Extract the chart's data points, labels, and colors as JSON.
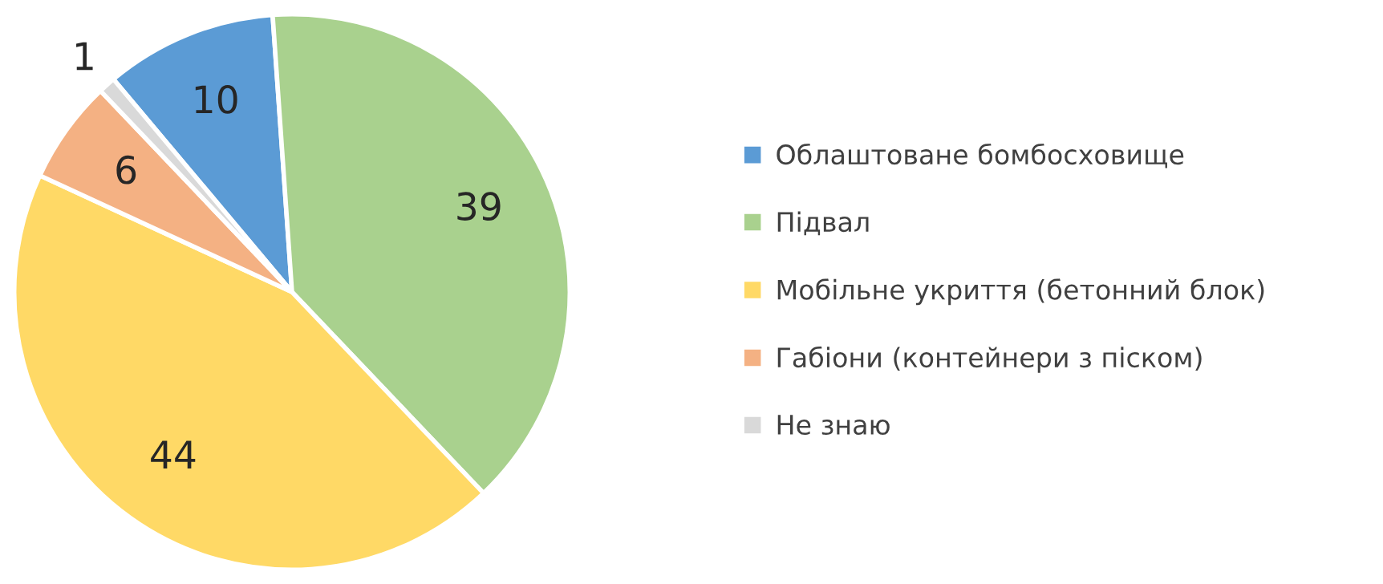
{
  "chart_data": {
    "type": "pie",
    "categories": [
      "Облаштоване бомбосховище",
      "Підвал",
      "Мобільне укриття (бетонний блок)",
      "Габіони (контейнери з піском)",
      "Не знаю"
    ],
    "values": [
      10,
      39,
      44,
      6,
      1
    ],
    "colors": [
      "#5b9bd5",
      "#a9d18e",
      "#ffd966",
      "#f4b183",
      "#d9d9d9"
    ],
    "data_labels": true,
    "legend": "right"
  }
}
